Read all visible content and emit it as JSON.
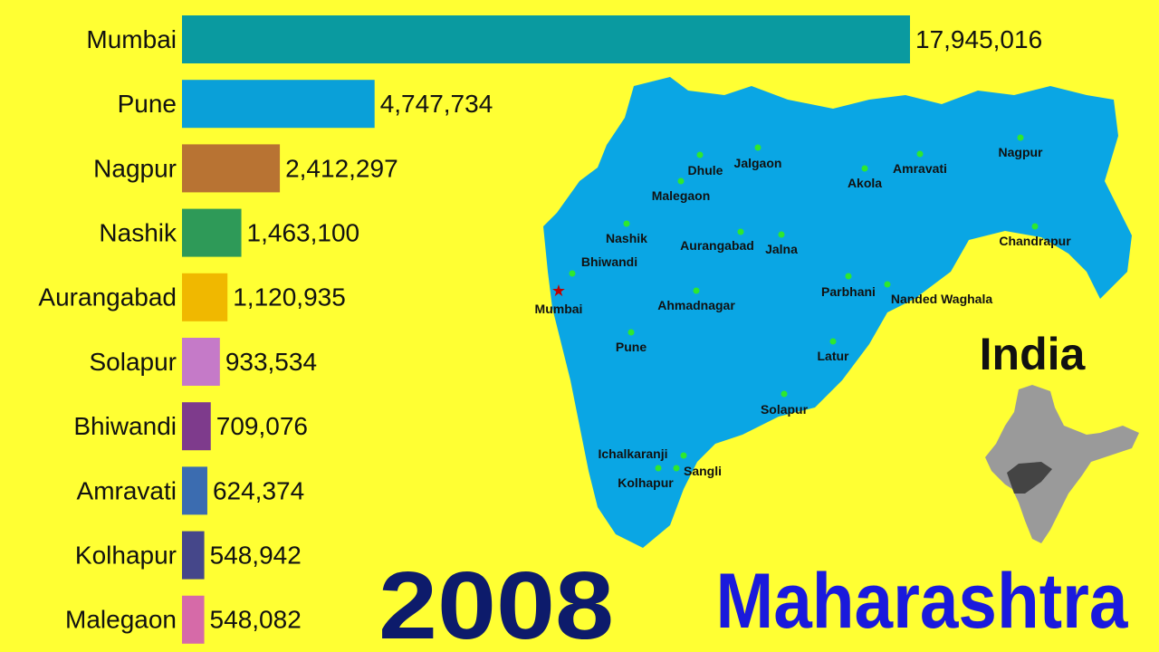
{
  "chart_data": {
    "type": "bar",
    "orientation": "horizontal",
    "categories": [
      "Mumbai",
      "Pune",
      "Nagpur",
      "Nashik",
      "Aurangabad",
      "Solapur",
      "Bhiwandi",
      "Amravati",
      "Kolhapur",
      "Malegaon"
    ],
    "values": [
      17945016,
      4747734,
      2412297,
      1463100,
      1120935,
      933534,
      709076,
      624374,
      548942,
      548082
    ],
    "value_labels": [
      "17,945,016",
      "4,747,734",
      "2,412,297",
      "1,463,100",
      "1,120,935",
      "933,534",
      "709,076",
      "624,374",
      "548,942",
      "548,082"
    ],
    "colors": [
      "#0a9aa0",
      "#0aa0d8",
      "#b87333",
      "#2e9a58",
      "#f0b800",
      "#c57ac8",
      "#7e3b8c",
      "#3b6cb0",
      "#45478a",
      "#d66aa8"
    ],
    "year": "2008",
    "subtitle": "Maharashtra",
    "map": {
      "inset_title": "India",
      "cities": [
        "Dhule",
        "Jalgaon",
        "Malegaon",
        "Amravati",
        "Akola",
        "Nagpur",
        "Nashik",
        "Aurangabad",
        "Jalna",
        "Chandrapur",
        "Bhiwandi",
        "Mumbai",
        "Parbhani",
        "Nanded Waghala",
        "Ahmadnagar",
        "Pune",
        "Latur",
        "Solapur",
        "Ichalkaranji",
        "Kolhapur",
        "Sangli"
      ]
    }
  }
}
